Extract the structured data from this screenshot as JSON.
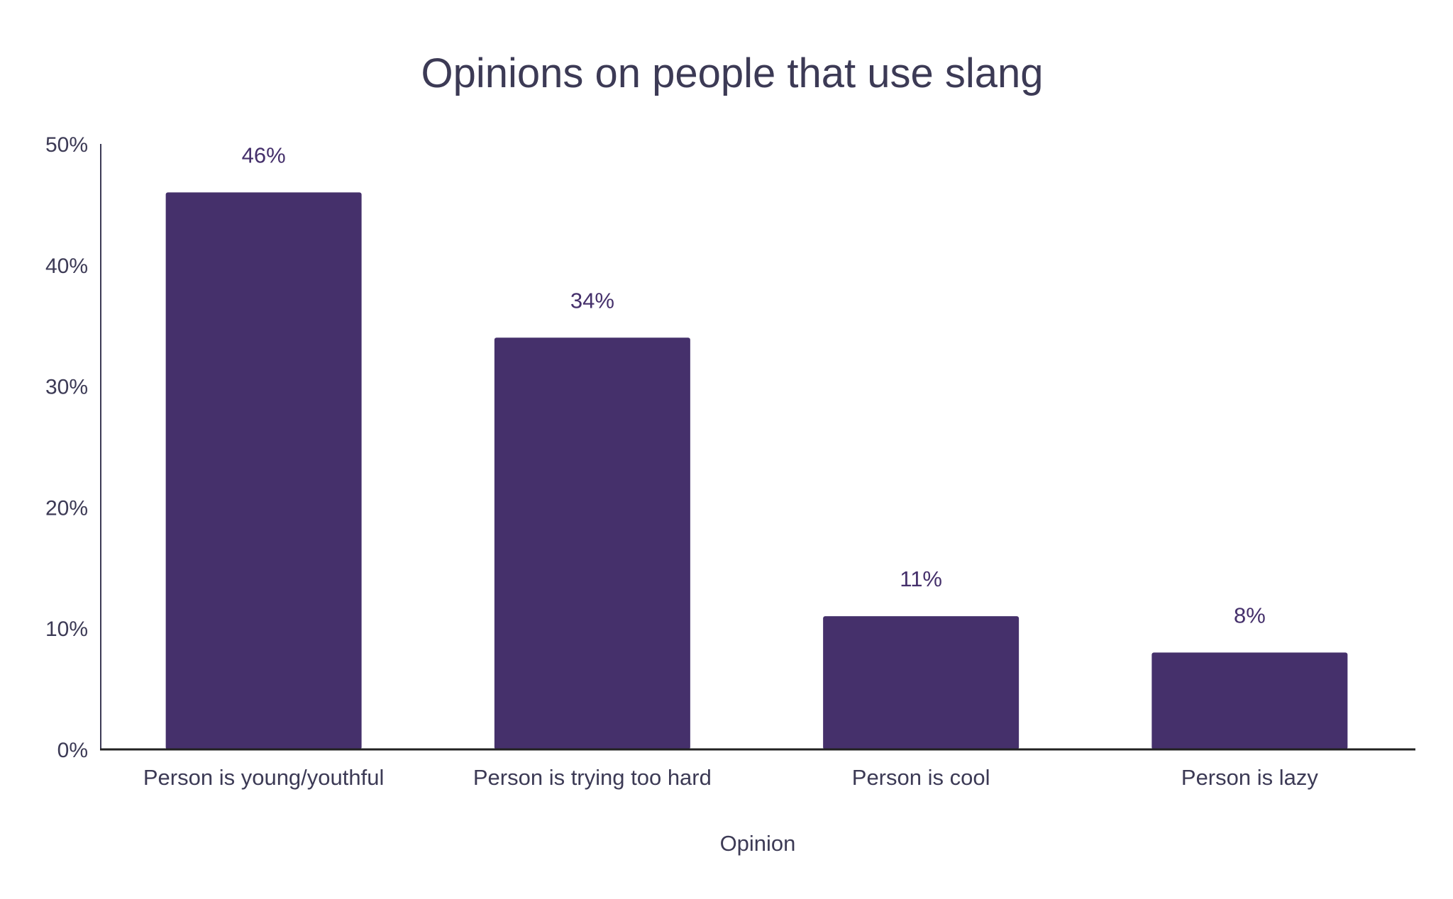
{
  "chart_data": {
    "type": "bar",
    "title": "Opinions on people that use slang",
    "xlabel": "Opinion",
    "ylabel": "",
    "categories": [
      "Person is young/youthful",
      "Person is trying too hard",
      "Person is cool",
      "Person is lazy"
    ],
    "values": [
      46,
      34,
      11,
      8
    ],
    "data_labels": [
      "46%",
      "34%",
      "11%",
      "8%"
    ],
    "ylim": [
      0,
      50
    ],
    "yticks": [
      0,
      10,
      20,
      30,
      40,
      50
    ],
    "ytick_labels": [
      "0%",
      "10%",
      "20%",
      "30%",
      "40%",
      "50%"
    ],
    "grid": false,
    "legend": "none",
    "bar_color": "#45306b",
    "text_color": "#3c3a55"
  }
}
